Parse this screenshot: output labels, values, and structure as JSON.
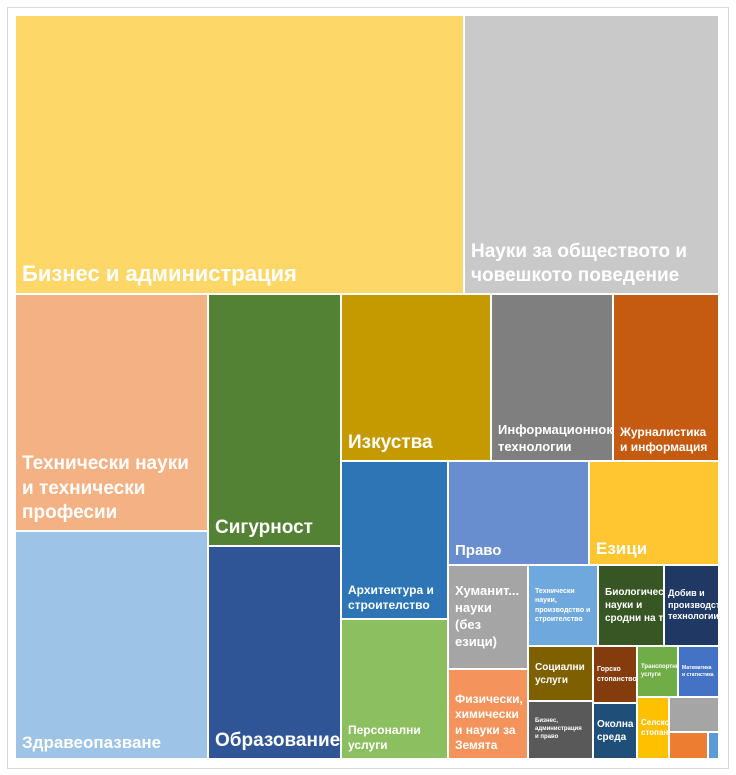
{
  "chart_data": {
    "type": "treemap",
    "items": [
      {
        "label": "Бизнес и администрация",
        "value": 124,
        "color": "#FDD869"
      },
      {
        "label": "Науки за обществото и човешкото поведение",
        "value": 70,
        "color": "#C9C9C9"
      },
      {
        "label": "Технически науки и технически професии",
        "value": 45,
        "color": "#F4B183"
      },
      {
        "label": "Здравеопазване",
        "value": 43,
        "color": "#9DC3E6"
      },
      {
        "label": "Сигурност",
        "value": 33,
        "color": "#548235"
      },
      {
        "label": "Образование",
        "value": 28,
        "color": "#2F5597"
      },
      {
        "label": "Изкуства",
        "value": 24,
        "color": "#C59A00"
      },
      {
        "label": "Информационнокомуникационни технологии",
        "value": 20,
        "color": "#7F7F7F"
      },
      {
        "label": "Журналистика и информация",
        "value": 17,
        "color": "#C55A11"
      },
      {
        "label": "Архитектура и строителство",
        "value": 16,
        "color": "#2E75B6"
      },
      {
        "label": "Персонални услуги",
        "value": 14.5,
        "color": "#8CBF5F"
      },
      {
        "label": "Право",
        "value": 14,
        "color": "#698ED0"
      },
      {
        "label": "Езици",
        "value": 13,
        "color": "#FFC631"
      },
      {
        "label": "Хуманит... науки (без езици)",
        "value": 8,
        "color": "#A5A5A5"
      },
      {
        "label": "Физически, химически и науки за Земята",
        "value": 7,
        "color": "#F4945C"
      },
      {
        "label": "Технически науки, производство и строителство",
        "value": 5.4,
        "color": "#6FA8DC"
      },
      {
        "label": "Биологически науки и сродни на тях",
        "value": 5.1,
        "color": "#375623"
      },
      {
        "label": "Добив и производствени технологии",
        "value": 4.2,
        "color": "#203864"
      },
      {
        "label": "Социални услуги",
        "value": 3.4,
        "color": "#7F6000"
      },
      {
        "label": "Бизнес, администрация и право",
        "value": 3.5,
        "color": "#595959"
      },
      {
        "label": "Горско стопанство",
        "value": 2.3,
        "color": "#843C0C"
      },
      {
        "label": "Околна среда",
        "value": 2.3,
        "color": "#1F4E79"
      },
      {
        "label": "Транспортни услуги",
        "value": 1.9,
        "color": "#70AD47"
      },
      {
        "label": "Математика и статистика",
        "value": 1.9,
        "color": "#4472C4"
      },
      {
        "label": "Селско стопанство",
        "value": 1.8,
        "color": "#FFC000"
      },
      {
        "label": "",
        "value": 1.6,
        "color": "#A5A5A5"
      },
      {
        "label": "",
        "value": 0.9,
        "color": "#ED7D31"
      },
      {
        "label": "",
        "value": 0.2,
        "color": "#5B9BD5"
      }
    ]
  }
}
